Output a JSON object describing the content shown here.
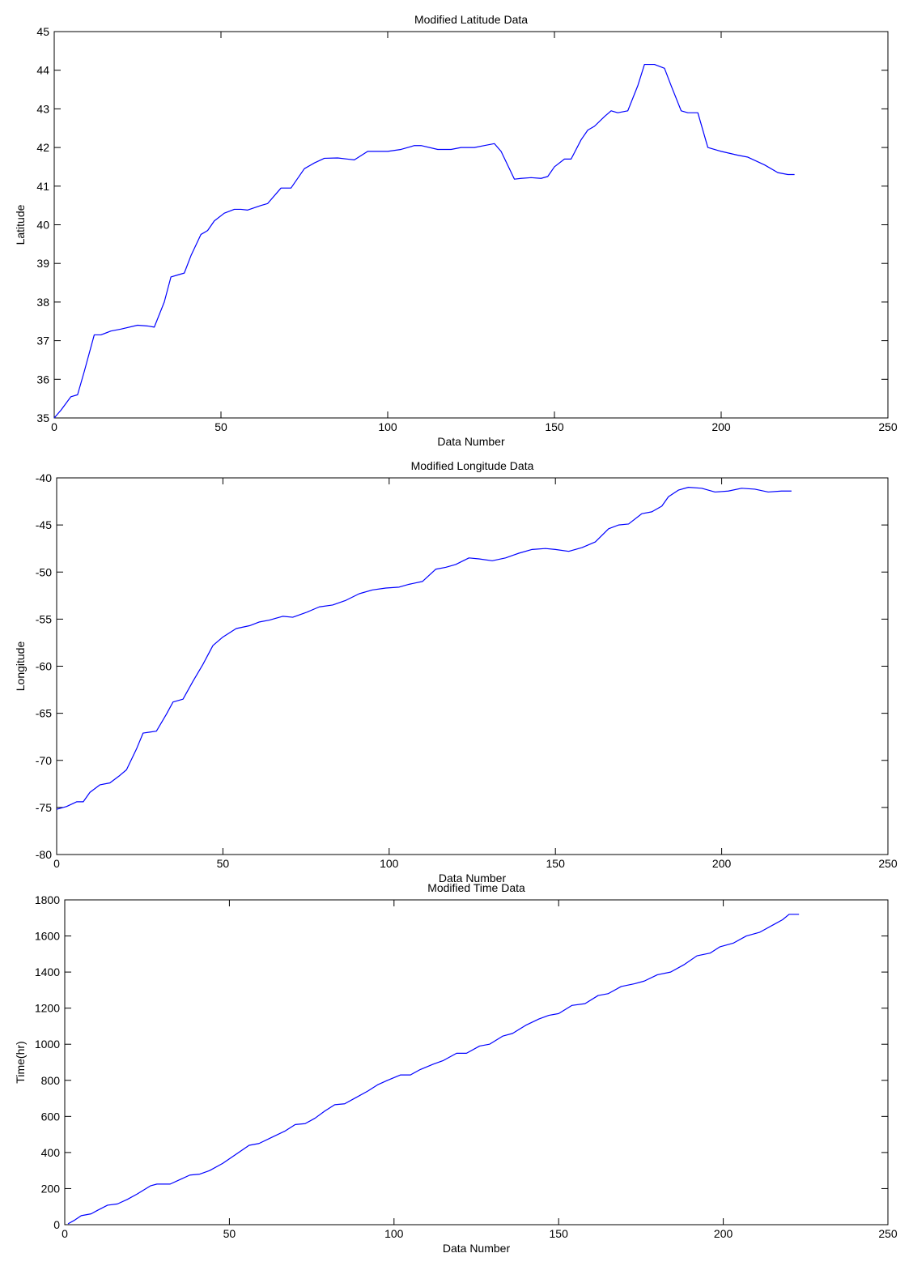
{
  "chart_data": [
    {
      "type": "line",
      "title": "Modified Latitude Data",
      "xlabel": "Data Number",
      "ylabel": "Latitude",
      "xlim": [
        0,
        250
      ],
      "ylim": [
        35,
        45
      ],
      "xticks": [
        0,
        50,
        100,
        150,
        200,
        250
      ],
      "yticks": [
        35,
        36,
        37,
        38,
        39,
        40,
        41,
        42,
        43,
        44,
        45
      ],
      "grid": false,
      "line_color": "#0000ff",
      "series": [
        {
          "points": [
            [
              0,
              35.0
            ],
            [
              2,
              35.2
            ],
            [
              5,
              35.55
            ],
            [
              7,
              35.6
            ],
            [
              9,
              36.2
            ],
            [
              12,
              37.15
            ],
            [
              14,
              37.15
            ],
            [
              17,
              37.25
            ],
            [
              20,
              37.3
            ],
            [
              25,
              37.4
            ],
            [
              28,
              37.38
            ],
            [
              30,
              37.35
            ],
            [
              33,
              38.0
            ],
            [
              35,
              38.65
            ],
            [
              37,
              38.7
            ],
            [
              39,
              38.75
            ],
            [
              41,
              39.2
            ],
            [
              44,
              39.75
            ],
            [
              46,
              39.85
            ],
            [
              48,
              40.1
            ],
            [
              51,
              40.3
            ],
            [
              54,
              40.4
            ],
            [
              56,
              40.4
            ],
            [
              58,
              40.38
            ],
            [
              62,
              40.5
            ],
            [
              64,
              40.55
            ],
            [
              68,
              40.95
            ],
            [
              71,
              40.95
            ],
            [
              75,
              41.45
            ],
            [
              78,
              41.6
            ],
            [
              81,
              41.72
            ],
            [
              85,
              41.73
            ],
            [
              88,
              41.7
            ],
            [
              90,
              41.68
            ],
            [
              94,
              41.9
            ],
            [
              100,
              41.9
            ],
            [
              104,
              41.95
            ],
            [
              108,
              42.05
            ],
            [
              110,
              42.05
            ],
            [
              115,
              41.95
            ],
            [
              119,
              41.95
            ],
            [
              122,
              42.0
            ],
            [
              126,
              42.0
            ],
            [
              129,
              42.05
            ],
            [
              132,
              42.1
            ],
            [
              134,
              41.9
            ],
            [
              138,
              41.18
            ],
            [
              140,
              41.2
            ],
            [
              143,
              41.22
            ],
            [
              146,
              41.2
            ],
            [
              148,
              41.25
            ],
            [
              150,
              41.5
            ],
            [
              153,
              41.7
            ],
            [
              155,
              41.7
            ],
            [
              158,
              42.2
            ],
            [
              160,
              42.45
            ],
            [
              162,
              42.55
            ],
            [
              165,
              42.8
            ],
            [
              167,
              42.95
            ],
            [
              169,
              42.9
            ],
            [
              172,
              42.95
            ],
            [
              175,
              43.6
            ],
            [
              177,
              44.15
            ],
            [
              180,
              44.15
            ],
            [
              183,
              44.05
            ],
            [
              185,
              43.6
            ],
            [
              188,
              42.95
            ],
            [
              190,
              42.9
            ],
            [
              193,
              42.9
            ],
            [
              196,
              42.0
            ],
            [
              200,
              41.9
            ],
            [
              205,
              41.8
            ],
            [
              208,
              41.75
            ],
            [
              213,
              41.55
            ],
            [
              217,
              41.35
            ],
            [
              220,
              41.3
            ],
            [
              222,
              41.3
            ]
          ]
        }
      ]
    },
    {
      "type": "line",
      "title": "Modified Longitude Data",
      "xlabel": "Data Number",
      "ylabel": "Longitude",
      "xlim": [
        0,
        250
      ],
      "ylim": [
        -80,
        -40
      ],
      "xticks": [
        0,
        50,
        100,
        150,
        200,
        250
      ],
      "yticks": [
        -80,
        -75,
        -70,
        -65,
        -60,
        -55,
        -50,
        -45,
        -40
      ],
      "grid": false,
      "line_color": "#0000ff",
      "series": [
        {
          "points": [
            [
              0,
              -75.2
            ],
            [
              3,
              -74.9
            ],
            [
              6,
              -74.4
            ],
            [
              8,
              -74.4
            ],
            [
              10,
              -73.4
            ],
            [
              13,
              -72.6
            ],
            [
              16,
              -72.4
            ],
            [
              19,
              -71.6
            ],
            [
              21,
              -71.0
            ],
            [
              24,
              -68.8
            ],
            [
              26,
              -67.1
            ],
            [
              28,
              -67.0
            ],
            [
              30,
              -66.9
            ],
            [
              33,
              -65.1
            ],
            [
              35,
              -63.8
            ],
            [
              38,
              -63.5
            ],
            [
              41,
              -61.6
            ],
            [
              44,
              -59.8
            ],
            [
              47,
              -57.8
            ],
            [
              50,
              -56.9
            ],
            [
              54,
              -56.0
            ],
            [
              58,
              -55.7
            ],
            [
              61,
              -55.3
            ],
            [
              64,
              -55.1
            ],
            [
              68,
              -54.7
            ],
            [
              71,
              -54.8
            ],
            [
              75,
              -54.3
            ],
            [
              79,
              -53.7
            ],
            [
              83,
              -53.5
            ],
            [
              87,
              -53.0
            ],
            [
              91,
              -52.3
            ],
            [
              95,
              -51.9
            ],
            [
              99,
              -51.7
            ],
            [
              103,
              -51.6
            ],
            [
              106,
              -51.3
            ],
            [
              110,
              -51.0
            ],
            [
              114,
              -49.7
            ],
            [
              117,
              -49.5
            ],
            [
              120,
              -49.2
            ],
            [
              124,
              -48.5
            ],
            [
              127,
              -48.6
            ],
            [
              131,
              -48.8
            ],
            [
              135,
              -48.5
            ],
            [
              139,
              -48.0
            ],
            [
              143,
              -47.6
            ],
            [
              147,
              -47.5
            ],
            [
              150,
              -47.6
            ],
            [
              154,
              -47.8
            ],
            [
              158,
              -47.4
            ],
            [
              162,
              -46.8
            ],
            [
              166,
              -45.4
            ],
            [
              169,
              -45.0
            ],
            [
              172,
              -44.9
            ],
            [
              176,
              -43.8
            ],
            [
              179,
              -43.6
            ],
            [
              182,
              -43.0
            ],
            [
              184,
              -42.0
            ],
            [
              187,
              -41.3
            ],
            [
              190,
              -41.0
            ],
            [
              194,
              -41.1
            ],
            [
              198,
              -41.5
            ],
            [
              202,
              -41.4
            ],
            [
              206,
              -41.1
            ],
            [
              210,
              -41.2
            ],
            [
              214,
              -41.5
            ],
            [
              218,
              -41.4
            ],
            [
              221,
              -41.4
            ]
          ]
        }
      ]
    },
    {
      "type": "line",
      "title": "Modified Time Data",
      "xlabel": "Data Number",
      "ylabel": "Time(hr)",
      "xlim": [
        0,
        250
      ],
      "ylim": [
        0,
        1800
      ],
      "xticks": [
        0,
        50,
        100,
        150,
        200,
        250
      ],
      "yticks": [
        0,
        200,
        400,
        600,
        800,
        1000,
        1200,
        1400,
        1600,
        1800
      ],
      "grid": false,
      "line_color": "#0000ff",
      "series": [
        {
          "points": [
            [
              1,
              5
            ],
            [
              3,
              25
            ],
            [
              5,
              50
            ],
            [
              8,
              60
            ],
            [
              10,
              80
            ],
            [
              13,
              108
            ],
            [
              16,
              115
            ],
            [
              19,
              140
            ],
            [
              22,
              170
            ],
            [
              26,
              215
            ],
            [
              28,
              225
            ],
            [
              32,
              225
            ],
            [
              35,
              250
            ],
            [
              38,
              275
            ],
            [
              41,
              280
            ],
            [
              44,
              300
            ],
            [
              48,
              340
            ],
            [
              52,
              390
            ],
            [
              56,
              440
            ],
            [
              59,
              450
            ],
            [
              63,
              485
            ],
            [
              67,
              520
            ],
            [
              70,
              555
            ],
            [
              73,
              560
            ],
            [
              76,
              590
            ],
            [
              79,
              630
            ],
            [
              82,
              665
            ],
            [
              85,
              670
            ],
            [
              88,
              700
            ],
            [
              92,
              740
            ],
            [
              95,
              775
            ],
            [
              98,
              800
            ],
            [
              102,
              830
            ],
            [
              105,
              830
            ],
            [
              108,
              860
            ],
            [
              112,
              890
            ],
            [
              115,
              910
            ],
            [
              119,
              950
            ],
            [
              122,
              950
            ],
            [
              126,
              990
            ],
            [
              129,
              1000
            ],
            [
              133,
              1045
            ],
            [
              136,
              1060
            ],
            [
              140,
              1105
            ],
            [
              144,
              1140
            ],
            [
              147,
              1160
            ],
            [
              150,
              1170
            ],
            [
              154,
              1215
            ],
            [
              158,
              1225
            ],
            [
              162,
              1270
            ],
            [
              165,
              1280
            ],
            [
              169,
              1320
            ],
            [
              173,
              1335
            ],
            [
              176,
              1350
            ],
            [
              180,
              1385
            ],
            [
              184,
              1400
            ],
            [
              188,
              1440
            ],
            [
              192,
              1490
            ],
            [
              196,
              1505
            ],
            [
              199,
              1540
            ],
            [
              203,
              1560
            ],
            [
              207,
              1600
            ],
            [
              211,
              1620
            ],
            [
              215,
              1660
            ],
            [
              218,
              1690
            ],
            [
              220,
              1720
            ],
            [
              223,
              1720
            ]
          ]
        }
      ]
    }
  ]
}
